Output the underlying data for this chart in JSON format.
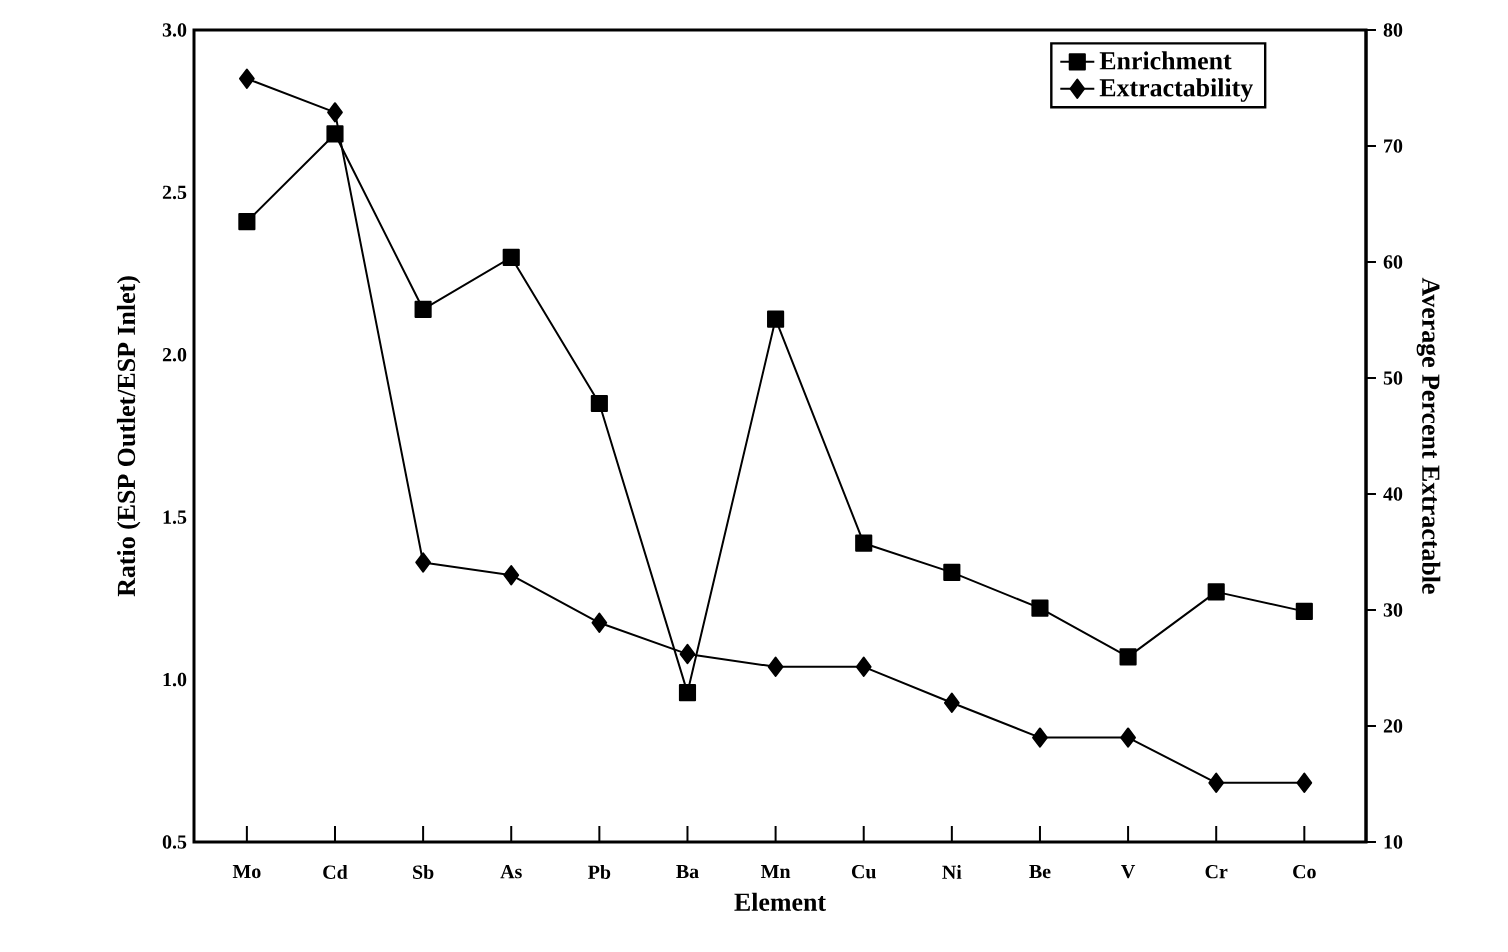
{
  "chart_data": {
    "type": "line",
    "xlabel": "Element",
    "ylabel": "Ratio (ESP Outlet/ESP Inlet)",
    "y2label": "Average Percent Extractable",
    "categories": [
      "Mo",
      "Cd",
      "Sb",
      "As",
      "Pb",
      "Ba",
      "Mn",
      "Cu",
      "Ni",
      "Be",
      "V",
      "Cr",
      "Co"
    ],
    "series": [
      {
        "name": "Enrichment",
        "color": "#000000",
        "marker": "square",
        "values": [
          2.41,
          2.68,
          2.14,
          2.3,
          1.85,
          0.96,
          2.11,
          1.42,
          1.33,
          1.22,
          1.07,
          1.27,
          1.21
        ]
      },
      {
        "name": "Extractability",
        "color": "#000000",
        "marker": "diamond",
        "axis": "y2",
        "values": [
          75.8,
          72.9,
          34.1,
          33.0,
          28.9,
          26.2,
          25.1,
          25.1,
          22.0,
          19.0,
          19.0,
          15.1,
          15.1
        ]
      }
    ],
    "ylim": [
      0.5,
      3.0
    ],
    "yticks": [
      {
        "value": 0.5,
        "label": "0.5"
      },
      {
        "value": 1,
        "label": "1.0"
      },
      {
        "value": 1.5,
        "label": "1.5"
      },
      {
        "value": 2,
        "label": "2.0"
      },
      {
        "value": 2.5,
        "label": "2.5"
      },
      {
        "value": 3,
        "label": "3.0"
      }
    ],
    "y2lim": [
      10,
      80
    ],
    "y2ticks": [
      10,
      20,
      30,
      40,
      50,
      60,
      70,
      80
    ],
    "grid": false,
    "legend": "top right",
    "line_style": "solid"
  }
}
